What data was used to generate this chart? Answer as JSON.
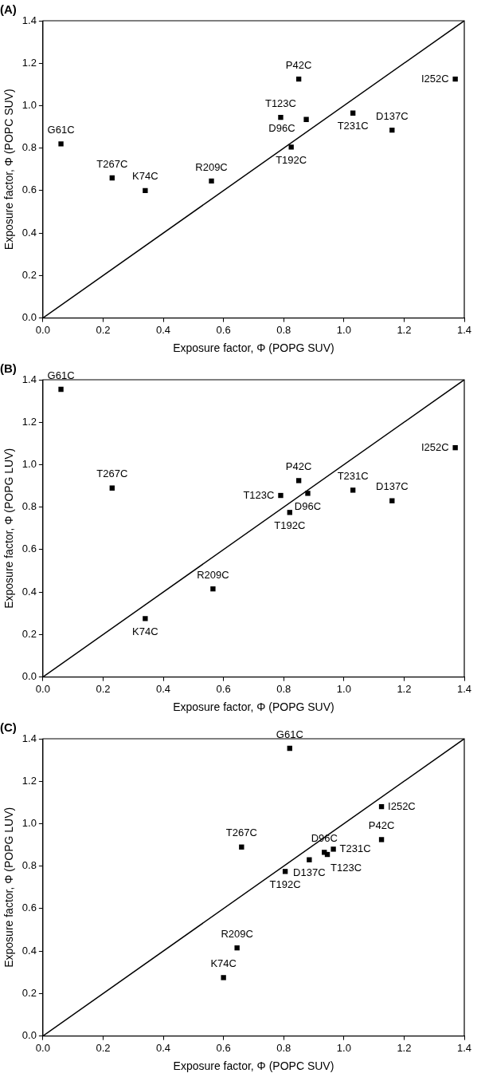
{
  "chart_data": [
    {
      "type": "scatter",
      "title": "(A)",
      "xlabel": "Exposure factor, Φ (POPG SUV)",
      "ylabel": "Exposure factor, Φ (POPC SUV)",
      "xlim": [
        0,
        1.4
      ],
      "ylim": [
        0,
        1.4
      ],
      "xticks": [
        {
          "value": 0,
          "label": "0.0"
        },
        {
          "value": 0.2,
          "label": "0.2"
        },
        {
          "value": 0.4,
          "label": "0.4"
        },
        {
          "value": 0.6,
          "label": "0.6"
        },
        {
          "value": 0.8,
          "label": "0.8"
        },
        {
          "value": 1,
          "label": "1.0"
        },
        {
          "value": 1.2,
          "label": "1.2"
        },
        {
          "value": 1.4,
          "label": "1.4"
        }
      ],
      "yticks": [
        {
          "value": 0,
          "label": "0.0"
        },
        {
          "value": 0.2,
          "label": "0.2"
        },
        {
          "value": 0.4,
          "label": "0.4"
        },
        {
          "value": 0.6,
          "label": "0.6"
        },
        {
          "value": 0.8,
          "label": "0.8"
        },
        {
          "value": 1,
          "label": "1.0"
        },
        {
          "value": 1.2,
          "label": "1.2"
        },
        {
          "value": 1.4,
          "label": "1.4"
        }
      ],
      "grid": false,
      "legend": false,
      "series": [
        {
          "type": "scatter",
          "marker": "square",
          "color": "#000000",
          "x": [
            0.06,
            0.23,
            0.34,
            0.56,
            0.79,
            0.85,
            0.825,
            0.875,
            1.03,
            1.16,
            1.37
          ],
          "values": [
            0.82,
            0.66,
            0.6,
            0.645,
            0.945,
            1.125,
            0.805,
            0.935,
            0.965,
            0.885,
            1.125
          ]
        },
        {
          "type": "line",
          "marker": "none",
          "color": "#000000",
          "x": [
            0,
            1.4
          ],
          "values": [
            0,
            1.4
          ]
        }
      ],
      "annotations": [
        {
          "text": "G61C",
          "x": 0.06,
          "y": 0.82
        },
        {
          "text": "T267C",
          "x": 0.23,
          "y": 0.66
        },
        {
          "text": "K74C",
          "x": 0.34,
          "y": 0.6
        },
        {
          "text": "R209C",
          "x": 0.56,
          "y": 0.645
        },
        {
          "text": "T123C",
          "x": 0.79,
          "y": 0.945
        },
        {
          "text": "P42C",
          "x": 0.85,
          "y": 1.125
        },
        {
          "text": "T192C",
          "x": 0.825,
          "y": 0.805
        },
        {
          "text": "D96C",
          "x": 0.875,
          "y": 0.935
        },
        {
          "text": "T231C",
          "x": 1.03,
          "y": 0.965
        },
        {
          "text": "D137C",
          "x": 1.16,
          "y": 0.885
        },
        {
          "text": "I252C",
          "x": 1.37,
          "y": 1.125
        }
      ]
    },
    {
      "type": "scatter",
      "title": "(B)",
      "xlabel": "Exposure factor, Φ (POPG SUV)",
      "ylabel": "Exposure factor, Φ (POPG LUV)",
      "xlim": [
        0,
        1.4
      ],
      "ylim": [
        0,
        1.4
      ],
      "xticks": [
        {
          "value": 0,
          "label": "0.0"
        },
        {
          "value": 0.2,
          "label": "0.2"
        },
        {
          "value": 0.4,
          "label": "0.4"
        },
        {
          "value": 0.6,
          "label": "0.6"
        },
        {
          "value": 0.8,
          "label": "0.8"
        },
        {
          "value": 1,
          "label": "1.0"
        },
        {
          "value": 1.2,
          "label": "1.2"
        },
        {
          "value": 1.4,
          "label": "1.4"
        }
      ],
      "yticks": [
        {
          "value": 0,
          "label": "0.0"
        },
        {
          "value": 0.2,
          "label": "0.2"
        },
        {
          "value": 0.4,
          "label": "0.4"
        },
        {
          "value": 0.6,
          "label": "0.6"
        },
        {
          "value": 0.8,
          "label": "0.8"
        },
        {
          "value": 1,
          "label": "1.0"
        },
        {
          "value": 1.2,
          "label": "1.2"
        },
        {
          "value": 1.4,
          "label": "1.4"
        }
      ],
      "grid": false,
      "legend": false,
      "series": [
        {
          "type": "scatter",
          "marker": "square",
          "color": "#000000",
          "x": [
            0.06,
            0.23,
            0.34,
            0.565,
            0.79,
            0.85,
            0.82,
            0.88,
            1.03,
            1.16,
            1.37
          ],
          "values": [
            1.355,
            0.89,
            0.275,
            0.415,
            0.855,
            0.925,
            0.775,
            0.865,
            0.88,
            0.83,
            1.08
          ]
        },
        {
          "type": "line",
          "marker": "none",
          "color": "#000000",
          "x": [
            0,
            1.4
          ],
          "values": [
            0,
            1.4
          ]
        }
      ],
      "annotations": [
        {
          "text": "G61C",
          "x": 0.06,
          "y": 1.355
        },
        {
          "text": "T267C",
          "x": 0.23,
          "y": 0.89
        },
        {
          "text": "K74C",
          "x": 0.34,
          "y": 0.275
        },
        {
          "text": "R209C",
          "x": 0.565,
          "y": 0.415
        },
        {
          "text": "T123C",
          "x": 0.79,
          "y": 0.855
        },
        {
          "text": "P42C",
          "x": 0.85,
          "y": 0.925
        },
        {
          "text": "T192C",
          "x": 0.82,
          "y": 0.775
        },
        {
          "text": "D96C",
          "x": 0.88,
          "y": 0.865
        },
        {
          "text": "T231C",
          "x": 1.03,
          "y": 0.88
        },
        {
          "text": "D137C",
          "x": 1.16,
          "y": 0.83
        },
        {
          "text": "I252C",
          "x": 1.37,
          "y": 1.08
        }
      ]
    },
    {
      "type": "scatter",
      "title": "(C)",
      "xlabel": "Exposure factor, Φ (POPC SUV)",
      "ylabel": "Exposure factor, Φ (POPG LUV)",
      "xlim": [
        0,
        1.4
      ],
      "ylim": [
        0,
        1.4
      ],
      "xticks": [
        {
          "value": 0,
          "label": "0.0"
        },
        {
          "value": 0.2,
          "label": "0.2"
        },
        {
          "value": 0.4,
          "label": "0.4"
        },
        {
          "value": 0.6,
          "label": "0.6"
        },
        {
          "value": 0.8,
          "label": "0.8"
        },
        {
          "value": 1,
          "label": "1.0"
        },
        {
          "value": 1.2,
          "label": "1.2"
        },
        {
          "value": 1.4,
          "label": "1.4"
        }
      ],
      "yticks": [
        {
          "value": 0,
          "label": "0.0"
        },
        {
          "value": 0.2,
          "label": "0.2"
        },
        {
          "value": 0.4,
          "label": "0.4"
        },
        {
          "value": 0.6,
          "label": "0.6"
        },
        {
          "value": 0.8,
          "label": "0.8"
        },
        {
          "value": 1,
          "label": "1.0"
        },
        {
          "value": 1.2,
          "label": "1.2"
        },
        {
          "value": 1.4,
          "label": "1.4"
        }
      ],
      "grid": false,
      "legend": false,
      "series": [
        {
          "type": "scatter",
          "marker": "square",
          "color": "#000000",
          "x": [
            0.82,
            0.66,
            0.6,
            0.645,
            0.945,
            1.125,
            0.805,
            0.935,
            0.965,
            0.885,
            1.125
          ],
          "values": [
            1.355,
            0.89,
            0.275,
            0.415,
            0.855,
            0.925,
            0.775,
            0.865,
            0.88,
            0.83,
            1.08
          ]
        },
        {
          "type": "line",
          "marker": "none",
          "color": "#000000",
          "x": [
            0,
            1.4
          ],
          "values": [
            0,
            1.4
          ]
        }
      ],
      "annotations": [
        {
          "text": "G61C",
          "x": 0.82,
          "y": 1.355
        },
        {
          "text": "T267C",
          "x": 0.66,
          "y": 0.89
        },
        {
          "text": "K74C",
          "x": 0.6,
          "y": 0.275
        },
        {
          "text": "R209C",
          "x": 0.645,
          "y": 0.415
        },
        {
          "text": "T123C",
          "x": 0.945,
          "y": 0.855
        },
        {
          "text": "P42C",
          "x": 1.125,
          "y": 0.925
        },
        {
          "text": "T192C",
          "x": 0.805,
          "y": 0.775
        },
        {
          "text": "D96C",
          "x": 0.935,
          "y": 0.865
        },
        {
          "text": "T231C",
          "x": 0.965,
          "y": 0.88
        },
        {
          "text": "D137C",
          "x": 0.885,
          "y": 0.83
        },
        {
          "text": "I252C",
          "x": 1.125,
          "y": 1.08
        }
      ]
    }
  ]
}
